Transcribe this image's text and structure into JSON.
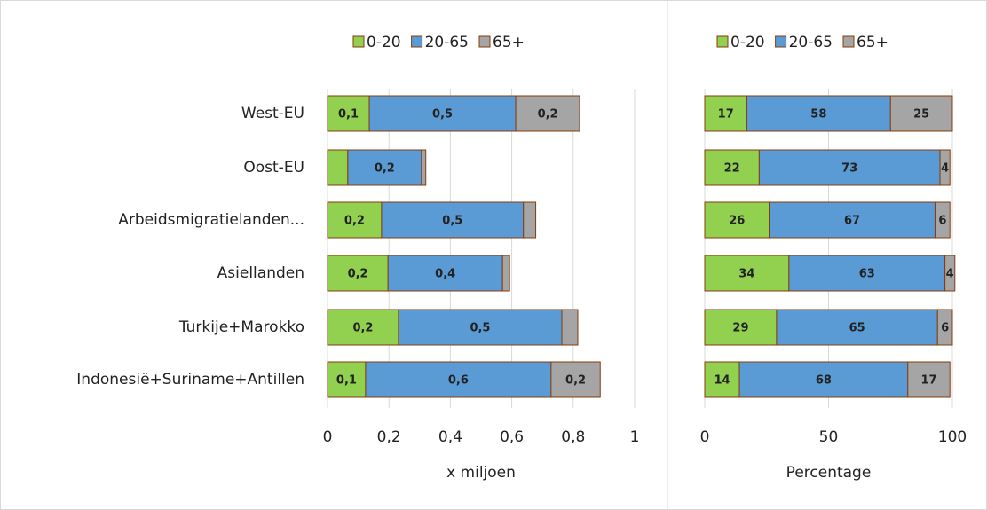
{
  "chart_data": [
    {
      "type": "stacked-bar-horizontal",
      "categories": [
        "West-EU",
        "Oost-EU",
        "Arbeidsmigratielanden...",
        "Asiellanden",
        "Turkije+Marokko",
        "Indonesië+Suriname+Antillen"
      ],
      "series": [
        {
          "name": "0-20",
          "color": "#92d050",
          "values": [
            0.136,
            0.066,
            0.176,
            0.197,
            0.231,
            0.124
          ],
          "value_labels": [
            "0,1",
            null,
            "0,2",
            "0,2",
            "0,2",
            "0,1"
          ]
        },
        {
          "name": "20-65",
          "color": "#5b9bd5",
          "values": [
            0.477,
            0.24,
            0.462,
            0.373,
            0.532,
            0.604
          ],
          "value_labels": [
            "0,5",
            "0,2",
            "0,5",
            "0,4",
            "0,5",
            "0,6"
          ]
        },
        {
          "name": "65+",
          "color": "#a5a5a5",
          "values": [
            0.208,
            0.014,
            0.04,
            0.023,
            0.052,
            0.16
          ],
          "value_labels": [
            "0,2",
            null,
            null,
            null,
            null,
            "0,2"
          ]
        }
      ],
      "xlim": [
        0,
        1
      ],
      "xticks": [
        0,
        {
          "value": 0.2,
          "label": "0,2"
        },
        {
          "value": 0.4,
          "label": "0,4"
        },
        {
          "value": 0.6,
          "label": "0,6"
        },
        {
          "value": 0.8,
          "label": "0,8"
        },
        1
      ],
      "x_label": "x miljoen",
      "grid": true,
      "legend": "top"
    },
    {
      "type": "stacked-bar-horizontal",
      "series": [
        {
          "name": "0-20",
          "color": "#92d050",
          "values": [
            17,
            22,
            26,
            34,
            29,
            14
          ]
        },
        {
          "name": "20-65",
          "color": "#5b9bd5",
          "values": [
            58,
            73,
            67,
            63,
            65,
            68
          ]
        },
        {
          "name": "65+",
          "color": "#a5a5a5",
          "values": [
            25,
            4,
            6,
            4,
            6,
            17
          ]
        }
      ],
      "xlim": [
        0,
        100
      ],
      "xticks": [
        0,
        50,
        100
      ],
      "x_label": "Percentage",
      "grid": true,
      "legend": "top"
    }
  ]
}
